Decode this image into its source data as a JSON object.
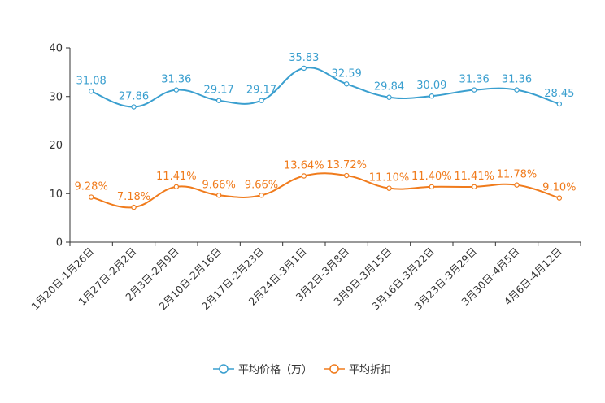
{
  "chart_data": {
    "type": "line",
    "categories": [
      "1月20日-1月26日",
      "1月27日-2月2日",
      "2月3日-2月9日",
      "2月10日-2月16日",
      "2月17日-2月23日",
      "2月24日-3月1日",
      "3月2日-3月8日",
      "3月9日-3月15日",
      "3月16日-3月22日",
      "3月23日-3月29日",
      "3月30日-4月5日",
      "4月6日-4月12日"
    ],
    "ylim": [
      0,
      40
    ],
    "yticks": [
      0,
      10,
      20,
      30,
      40
    ],
    "series": [
      {
        "name": "平均价格（万）",
        "color": "#3a9fcf",
        "values": [
          31.08,
          27.86,
          31.36,
          29.17,
          29.17,
          35.83,
          32.59,
          29.84,
          30.09,
          31.36,
          31.36,
          28.45
        ],
        "labels": [
          "31.08",
          "27.86",
          "31.36",
          "29.17",
          "29.17",
          "35.83",
          "32.59",
          "29.84",
          "30.09",
          "31.36",
          "31.36",
          "28.45"
        ]
      },
      {
        "name": "平均折扣",
        "color": "#f07b1c",
        "values": [
          9.28,
          7.18,
          11.41,
          9.66,
          9.66,
          13.64,
          13.72,
          11.1,
          11.4,
          11.41,
          11.78,
          9.1
        ],
        "labels": [
          "9.28%",
          "7.18%",
          "11.41%",
          "9.66%",
          "9.66%",
          "13.64%",
          "13.72%",
          "11.10%",
          "11.40%",
          "11.41%",
          "11.78%",
          "9.10%"
        ]
      }
    ],
    "legend_position": "bottom-center",
    "grid": false
  }
}
